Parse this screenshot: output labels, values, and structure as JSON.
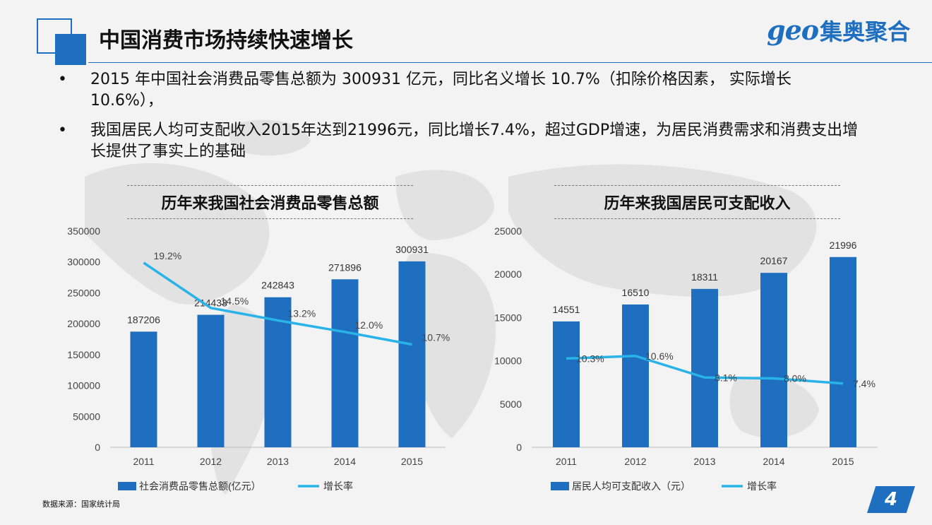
{
  "page": {
    "title": "中国消费市场持续快速增长",
    "logo_latin": "geo",
    "logo_cn": "集奥聚合",
    "bullets": [
      "2015 年中国社会消费品零售总额为 300931 亿元，同比名义增长 10.7%（扣除价格因素， 实际增长 10.6%），",
      "我国居民人均可支配收入2015年达到21996元，同比增长7.4%，超过GDP增速，为居民消费需求和消费支出增长提供了事实上的基础"
    ],
    "bullet_symbol": "•",
    "source": "数据来源：国家统计局",
    "page_number": "4",
    "colors": {
      "bar": "#1e6fc0",
      "line": "#29b3e8",
      "accent": "#1e6fc0"
    }
  },
  "chart_data": [
    {
      "type": "bar",
      "title": "历年来我国社会消费品零售总额",
      "categories": [
        "2011",
        "2012",
        "2013",
        "2014",
        "2015"
      ],
      "series": [
        {
          "name": "社会消费品零售总额(亿元）",
          "type": "bar",
          "values": [
            187206,
            214433,
            242843,
            271896,
            300931
          ],
          "labels": [
            "187206",
            "214433",
            "242843",
            "271896",
            "300931"
          ]
        },
        {
          "name": "增长率",
          "type": "line",
          "values": [
            19.2,
            14.5,
            13.2,
            12.0,
            10.7
          ],
          "labels": [
            "19.2%",
            "14.5%",
            "13.2%",
            "12.0%",
            "10.7%"
          ]
        }
      ],
      "ylim": [
        0,
        350000
      ],
      "yticks": [
        "0",
        "50000",
        "100000",
        "150000",
        "200000",
        "250000",
        "300000",
        "350000"
      ],
      "line_ylim": [
        0,
        22.5
      ],
      "legend_position": "bottom"
    },
    {
      "type": "bar",
      "title": "历年来我国居民可支配收入",
      "categories": [
        "2011",
        "2012",
        "2013",
        "2014",
        "2015"
      ],
      "series": [
        {
          "name": "居民人均可支配收入（元）",
          "type": "bar",
          "values": [
            14551,
            16510,
            18311,
            20167,
            21996
          ],
          "labels": [
            "14551",
            "16510",
            "18311",
            "20167",
            "21996"
          ]
        },
        {
          "name": "增长率",
          "type": "line",
          "values": [
            10.3,
            10.6,
            8.1,
            8.0,
            7.4
          ],
          "labels": [
            "10.3%",
            "10.6%",
            "8.1%",
            "8.0%",
            "7.4%"
          ]
        }
      ],
      "ylim": [
        0,
        25000
      ],
      "yticks": [
        "0",
        "5000",
        "10000",
        "15000",
        "20000",
        "25000"
      ],
      "line_ylim": [
        0,
        25.1
      ],
      "legend_position": "bottom"
    }
  ]
}
